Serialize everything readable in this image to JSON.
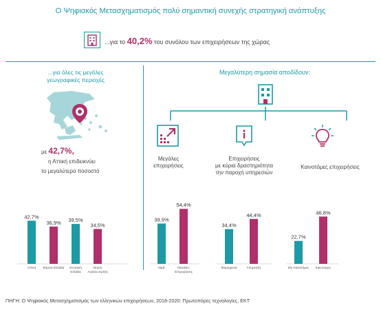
{
  "title": "Ο Ψηφιακός Μετασχηματισμός πολύ σημαντική συνεχής στρατηγική ανάπτυξης",
  "top_stat": {
    "prefix": "...για το",
    "value": "40,2%",
    "suffix": "του συνόλου των επιχειρήσεων  της χώρας"
  },
  "left_panel": {
    "heading_line1": "...για όλες τις μεγάλες",
    "heading_line2": "γεωγραφικές περιοχές",
    "stat_prefix": "με",
    "stat_value": "42,7%,",
    "stat_line2": "η  Αττική επιδεικνύει",
    "stat_line3": "το μεγαλύτερο ποσοστό"
  },
  "right_panel": {
    "heading": "Μεγαλύτερη σημασία αποδίδουν:",
    "categories": [
      {
        "line1": "Μεγάλες",
        "line2": "επιχειρήσεις",
        "line3": ""
      },
      {
        "line1": "Επιχειρήσεις",
        "line2": "με κύρια δραστηριότητα",
        "line3": "την παροχή υπηρεσιών"
      },
      {
        "line1": "Καινοτόμες επιχειρήσεις",
        "line2": "",
        "line3": ""
      }
    ]
  },
  "icons": {
    "top": "building-icon",
    "map": "greece-map-icon",
    "pin": "location-pin-icon",
    "center": "building-icon",
    "large": "arrow-expand-icon",
    "services": "info-document-icon",
    "innovative": "lightbulb-icon"
  },
  "colors": {
    "teal": "#1c9aa6",
    "magenta": "#b0306a",
    "map": "#a7d6da"
  },
  "chart_data": [
    {
      "type": "bar",
      "categories": [
        "Αττική",
        "Βόρεια Ελλάδα",
        "Κεντρική Ελλάδα",
        "Νησιά Αιγαίου,Κρήτη"
      ],
      "category_lines": [
        [
          "Αττική"
        ],
        [
          "Βόρεια Ελλάδα"
        ],
        [
          "Κεντρική",
          "Ελλάδα"
        ],
        [
          "Νησιά",
          "Αιγαίου,Κρήτη"
        ]
      ],
      "values": [
        42.7,
        36.9,
        39.5,
        34.5
      ],
      "labels": [
        "42,7%",
        "36,9%",
        "39,5%",
        "34,5%"
      ],
      "colors": [
        "#1c9aa6",
        "#b0306a",
        "#1c9aa6",
        "#b0306a"
      ],
      "ylim": [
        0,
        60
      ]
    },
    {
      "type": "bar",
      "categories": [
        "ΜμΕ",
        "Μεγάλες Επιχειρήσεις"
      ],
      "category_lines": [
        [
          "ΜμΕ"
        ],
        [
          "Μεγάλες",
          "Επιχειρήσεις"
        ]
      ],
      "values": [
        39.9,
        54.4
      ],
      "labels": [
        "39,9%",
        "54,4%"
      ],
      "colors": [
        "#1c9aa6",
        "#b0306a"
      ],
      "ylim": [
        0,
        60
      ]
    },
    {
      "type": "bar",
      "categories": [
        "Βιομηχανία",
        "Υπηρεσίες"
      ],
      "category_lines": [
        [
          "Βιομηχανία"
        ],
        [
          "Υπηρεσίες"
        ]
      ],
      "values": [
        34.4,
        44.4
      ],
      "labels": [
        "34,4%",
        "44,4%"
      ],
      "colors": [
        "#1c9aa6",
        "#b0306a"
      ],
      "ylim": [
        0,
        60
      ]
    },
    {
      "type": "bar",
      "categories": [
        "Μη Καινοτόμες",
        "Καινοτόμες"
      ],
      "category_lines": [
        [
          "Μη Καινοτόμες"
        ],
        [
          "Καινοτόμες"
        ]
      ],
      "values": [
        22.7,
        46.8
      ],
      "labels": [
        "22,7%",
        "46,8%"
      ],
      "colors": [
        "#1c9aa6",
        "#b0306a"
      ],
      "ylim": [
        0,
        60
      ]
    }
  ],
  "source": "ΠΗΓΗ: Ο Ψηφιακός Μετασχηματισμός των ελληνικών επιχειρήσεων, 2018-2020: Πρωτοπόρες τεχνολογίες, ΕΚΤ"
}
